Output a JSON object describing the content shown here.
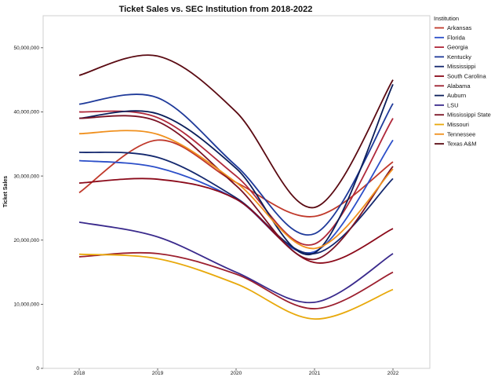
{
  "chart_data": {
    "type": "line",
    "title": "Ticket Sales vs. SEC Institution from 2018-2022",
    "xlabel": "",
    "ylabel": "Ticket Sales",
    "x": [
      "2018",
      "2019",
      "2020",
      "2021",
      "2022"
    ],
    "ylim": [
      0,
      55000000
    ],
    "yticks": [
      0,
      10000000,
      20000000,
      30000000,
      40000000,
      50000000
    ],
    "ytick_labels": [
      "0",
      "10,000,000",
      "20,000,000",
      "30,000,000",
      "40,000,000",
      "50,000,000"
    ],
    "grid": false,
    "legend_title": "Institution",
    "legend_position": "right",
    "series": [
      {
        "name": "Arkansas",
        "color": "#c0392b",
        "values": [
          27400000,
          35600000,
          29000000,
          23700000,
          32200000
        ]
      },
      {
        "name": "Florida",
        "color": "#2c4fc9",
        "values": [
          32400000,
          31300000,
          26400000,
          18200000,
          35600000
        ]
      },
      {
        "name": "Georgia",
        "color": "#b0283a",
        "values": [
          40000000,
          39100000,
          30000000,
          19400000,
          39000000
        ]
      },
      {
        "name": "Kentucky",
        "color": "#1f3a9a",
        "values": [
          41200000,
          42200000,
          31600000,
          21000000,
          41300000
        ]
      },
      {
        "name": "Mississippi",
        "color": "#14286e",
        "values": [
          33700000,
          32900000,
          26600000,
          17900000,
          29600000
        ]
      },
      {
        "name": "South Carolina",
        "color": "#8b0a1a",
        "values": [
          28900000,
          29500000,
          26400000,
          16500000,
          21800000
        ]
      },
      {
        "name": "Alabama",
        "color": "#9c1f2e",
        "values": [
          17400000,
          17900000,
          14700000,
          9300000,
          15000000
        ]
      },
      {
        "name": "Auburn",
        "color": "#0b1e5a",
        "values": [
          39000000,
          39700000,
          31200000,
          18000000,
          44300000
        ]
      },
      {
        "name": "LSU",
        "color": "#3a2a8c",
        "values": [
          22800000,
          20500000,
          15000000,
          10300000,
          17900000
        ]
      },
      {
        "name": "Mississippi State",
        "color": "#7a1224",
        "values": [
          39000000,
          38500000,
          28500000,
          17000000,
          31500000
        ]
      },
      {
        "name": "Missouri",
        "color": "#e8a90c",
        "values": [
          17800000,
          17100000,
          13200000,
          7700000,
          12300000
        ]
      },
      {
        "name": "Tennessee",
        "color": "#f0901e",
        "values": [
          36600000,
          36500000,
          29000000,
          18700000,
          31100000
        ]
      },
      {
        "name": "Texas A&M",
        "color": "#5a0a12",
        "values": [
          45700000,
          48700000,
          40000000,
          25100000,
          45000000
        ]
      }
    ]
  }
}
